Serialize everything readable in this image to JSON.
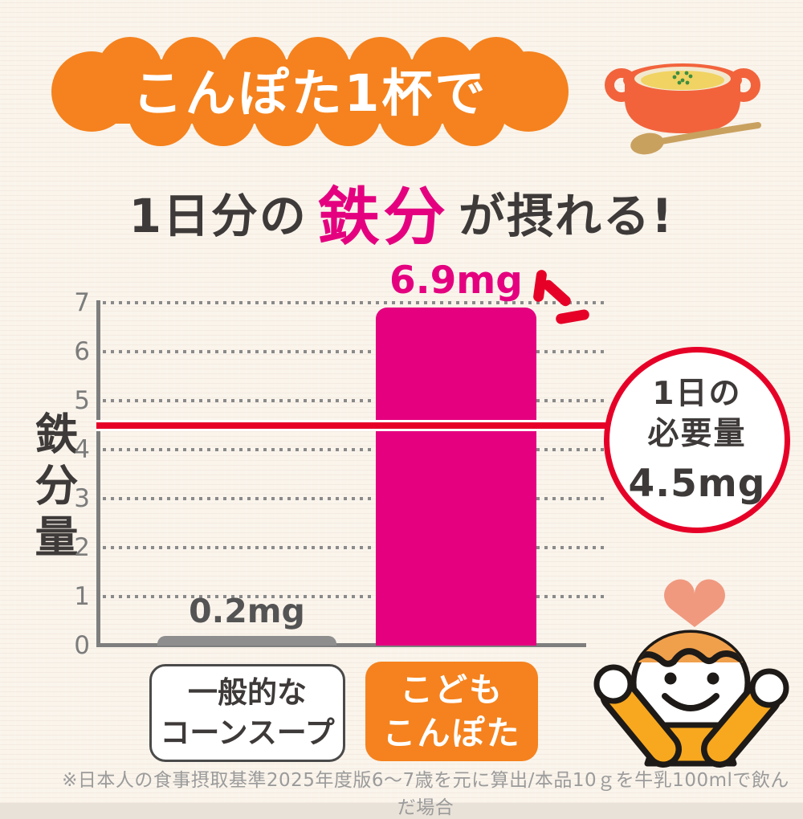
{
  "banner": {
    "text": "こんぽた1杯で"
  },
  "headline": {
    "prefix": "1日分の",
    "highlight": "鉄分",
    "suffix": "が摂れる!"
  },
  "chart_data": {
    "type": "bar",
    "ylabel": "鉄分量",
    "unit": "mg",
    "categories": [
      "一般的なコーンスープ",
      "こどもこんぽた"
    ],
    "values": [
      0.2,
      6.9
    ],
    "value_labels": [
      "0.2mg",
      "6.9mg"
    ],
    "bar_colors": [
      "#8E8E8E",
      "#E4007F"
    ],
    "ylim": [
      0,
      7
    ],
    "yticks": [
      0,
      1,
      2,
      3,
      4,
      5,
      6,
      7
    ],
    "grid": "horizontal-dotted",
    "legend_position": "none",
    "reference_line": {
      "value": 4.5,
      "label": "1日の必要量",
      "value_label": "4.5mg",
      "color": "#E60027"
    }
  },
  "badge": {
    "line1": "1日の",
    "line2": "必要量",
    "value": "4.5mg"
  },
  "category_buttons": [
    {
      "lines": [
        "一般的な",
        "コーンスープ"
      ]
    },
    {
      "lines": [
        "こども",
        "こんぽた"
      ]
    }
  ],
  "footnote": "※日本人の食事摂取基準2025年度版6～7歳を元に算出/本品10ｇを牛乳100mlで飲んだ場合",
  "icons": {
    "soup_pot": "soup-pot-icon",
    "spoon": "spoon-icon",
    "heart": "heart-icon",
    "character": "child-character",
    "sparkle": "emphasis-sparkle-icon"
  },
  "colors": {
    "orange": "#F5821E",
    "magenta": "#E4007F",
    "red": "#E60027",
    "bar_gray": "#8E8E8E",
    "ink": "#3E3A39",
    "axis_gray": "#7E7E7E",
    "paper_bg": "#FAF4EB",
    "pot_orange": "#F2633C",
    "soup_yellow": "#F0D362",
    "body_orange": "#F8A81E",
    "hair_orange": "#F0A04B",
    "heart_salmon": "#F0997F",
    "spoon_tan": "#C9A15F"
  }
}
